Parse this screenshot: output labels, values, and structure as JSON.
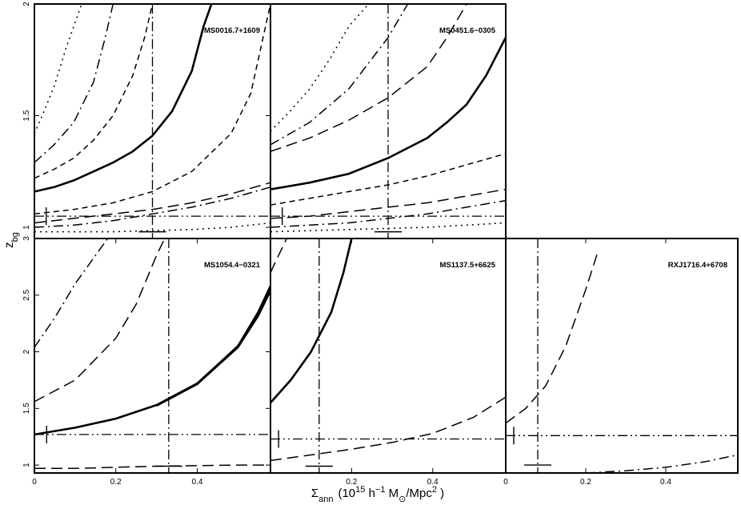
{
  "figure": {
    "ylabel": "z̄bg",
    "ylabel_main": "z",
    "ylabel_sub": "bg",
    "xlabel": "Σ̄ann (10^15 h^-1 M⊙/Mpc^2 )",
    "xlabel_parts": {
      "sigma": "Σ",
      "sigma_sub": "ann",
      "open": "(10",
      "exp15": "15",
      "h": " h",
      "exp_minus1": "−1",
      "M": " M",
      "M_sub": "⊙",
      "per": "/Mpc",
      "exp2": "2",
      "close": " )"
    }
  },
  "chart_data": [
    {
      "type": "line",
      "title": "MS0016.7+1609",
      "xlim": [
        0,
        0.6
      ],
      "ylim": [
        0.95,
        2
      ],
      "xticks": [],
      "yticks": [
        1,
        1.5,
        2
      ],
      "ytick_labels": [
        "1",
        "1.5",
        "2"
      ],
      "reference_lines": {
        "x": 0.3,
        "y": 1.05
      },
      "x_marker": {
        "x": 0.03,
        "y": 1.05
      },
      "y_marker": {
        "x": 0.3,
        "y": 0.98
      },
      "series": [
        {
          "style": "solid",
          "x": [
            0,
            0.05,
            0.1,
            0.15,
            0.2,
            0.25,
            0.3,
            0.35,
            0.4,
            0.43,
            0.45
          ],
          "y": [
            1.16,
            1.18,
            1.21,
            1.25,
            1.29,
            1.34,
            1.41,
            1.52,
            1.7,
            1.9,
            2
          ]
        },
        {
          "style": "short-dash",
          "x": [
            0,
            0.05,
            0.1,
            0.15,
            0.2,
            0.25,
            0.28,
            0.3
          ],
          "y": [
            1.22,
            1.26,
            1.31,
            1.39,
            1.5,
            1.68,
            1.85,
            2
          ]
        },
        {
          "style": "short-dash",
          "x": [
            0,
            0.1,
            0.2,
            0.3,
            0.4,
            0.5,
            0.55,
            0.6
          ],
          "y": [
            1.06,
            1.08,
            1.11,
            1.16,
            1.25,
            1.42,
            1.6,
            2
          ]
        },
        {
          "style": "dash-dot",
          "x": [
            0,
            0.05,
            0.1,
            0.15,
            0.18,
            0.2
          ],
          "y": [
            1.29,
            1.37,
            1.47,
            1.65,
            1.85,
            2
          ]
        },
        {
          "style": "dash-dot",
          "x": [
            0,
            0.1,
            0.2,
            0.3,
            0.4,
            0.5,
            0.6
          ],
          "y": [
            1.0,
            1.01,
            1.03,
            1.06,
            1.09,
            1.13,
            1.18
          ]
        },
        {
          "style": "long-dash",
          "x": [
            0,
            0.1,
            0.2,
            0.3,
            0.4,
            0.5,
            0.6
          ],
          "y": [
            1.02,
            1.04,
            1.06,
            1.08,
            1.11,
            1.15,
            1.2
          ]
        },
        {
          "style": "dotted",
          "x": [
            0,
            0.02,
            0.05,
            0.08,
            0.1,
            0.12
          ],
          "y": [
            1.42,
            1.5,
            1.63,
            1.8,
            1.9,
            2
          ]
        },
        {
          "style": "dotted",
          "x": [
            0,
            0.2,
            0.4,
            0.5,
            0.6
          ],
          "y": [
            0.98,
            0.98,
            0.99,
            1.0,
            1.02
          ]
        }
      ]
    },
    {
      "type": "line",
      "title": "MS0451.6−0305",
      "xlim": [
        0,
        0.6
      ],
      "ylim": [
        0.95,
        2
      ],
      "xticks": [],
      "yticks": [],
      "reference_lines": {
        "x": 0.3,
        "y": 1.05
      },
      "x_marker": {
        "x": 0.03,
        "y": 1.05
      },
      "y_marker": {
        "x": 0.3,
        "y": 0.98
      },
      "series": [
        {
          "style": "solid",
          "x": [
            0,
            0.1,
            0.2,
            0.3,
            0.4,
            0.45,
            0.5,
            0.55,
            0.6
          ],
          "y": [
            1.17,
            1.2,
            1.24,
            1.31,
            1.4,
            1.47,
            1.55,
            1.68,
            1.85
          ]
        },
        {
          "style": "short-dash",
          "x": [
            0,
            0.1,
            0.2,
            0.3,
            0.4,
            0.5,
            0.6
          ],
          "y": [
            1.1,
            1.13,
            1.16,
            1.19,
            1.23,
            1.28,
            1.33
          ]
        },
        {
          "style": "long-dash",
          "x": [
            0,
            0.1,
            0.2,
            0.3,
            0.4,
            0.45,
            0.5
          ],
          "y": [
            1.34,
            1.4,
            1.48,
            1.58,
            1.72,
            1.85,
            2
          ]
        },
        {
          "style": "long-dash",
          "x": [
            0,
            0.1,
            0.2,
            0.3,
            0.4,
            0.5,
            0.6
          ],
          "y": [
            1.04,
            1.05,
            1.07,
            1.09,
            1.11,
            1.14,
            1.17
          ]
        },
        {
          "style": "dash-dot",
          "x": [
            0,
            0.1,
            0.2,
            0.3,
            0.35
          ],
          "y": [
            1.37,
            1.47,
            1.62,
            1.85,
            2
          ]
        },
        {
          "style": "dash-dot",
          "x": [
            0,
            0.1,
            0.2,
            0.3,
            0.4,
            0.5,
            0.6
          ],
          "y": [
            1.0,
            1.01,
            1.02,
            1.04,
            1.06,
            1.09,
            1.12
          ]
        },
        {
          "style": "dotted",
          "x": [
            0,
            0.05,
            0.1,
            0.15,
            0.2,
            0.25
          ],
          "y": [
            1.43,
            1.52,
            1.62,
            1.75,
            1.9,
            2
          ]
        },
        {
          "style": "dotted",
          "x": [
            0,
            0.2,
            0.4,
            0.6
          ],
          "y": [
            0.98,
            0.99,
            1.0,
            1.02
          ]
        }
      ]
    },
    {
      "type": "line",
      "title": "MS1054.4−0321",
      "xlim": [
        0,
        0.58
      ],
      "ylim": [
        0.93,
        3
      ],
      "xticks": [
        0,
        0.2,
        0.4
      ],
      "xtick_labels": [
        "0",
        "0.2",
        "0.4"
      ],
      "yticks": [
        1,
        1.5,
        2,
        2.5,
        3
      ],
      "ytick_labels": [
        "1",
        "1.5",
        "2",
        "2.5",
        "3"
      ],
      "reference_lines": {
        "x": 0.33,
        "y": 1.27
      },
      "x_marker": {
        "x": 0.03,
        "y": 1.27
      },
      "y_marker": {
        "x": 0.33,
        "y": 0.99
      },
      "series": [
        {
          "style": "solid",
          "x": [
            0,
            0.1,
            0.2,
            0.3,
            0.4,
            0.5,
            0.55,
            0.58
          ],
          "y": [
            1.27,
            1.33,
            1.41,
            1.53,
            1.72,
            2.05,
            2.35,
            2.58
          ]
        },
        {
          "style": "solid",
          "x": [
            0.3,
            0.4,
            0.5,
            0.55,
            0.58
          ],
          "y": [
            1.525,
            1.715,
            2.04,
            2.32,
            2.54
          ]
        },
        {
          "style": "long-dash",
          "x": [
            0,
            0.1,
            0.2,
            0.25,
            0.3,
            0.32
          ],
          "y": [
            1.56,
            1.75,
            2.12,
            2.42,
            2.85,
            3
          ]
        },
        {
          "style": "dash-dot",
          "x": [
            0,
            0.05,
            0.1,
            0.15,
            0.18
          ],
          "y": [
            2.04,
            2.3,
            2.6,
            2.85,
            3
          ]
        },
        {
          "style": "long-dash",
          "x": [
            0,
            0.1,
            0.2,
            0.3,
            0.4,
            0.5,
            0.58
          ],
          "y": [
            0.97,
            0.97,
            0.98,
            0.99,
            0.995,
            1.0,
            1.0
          ]
        }
      ]
    },
    {
      "type": "line",
      "title": "MS1137.5+6625",
      "xlim": [
        0,
        0.58
      ],
      "ylim": [
        0.93,
        3
      ],
      "xticks": [
        0,
        0.2,
        0.4
      ],
      "xtick_labels": [
        "",
        "0.2",
        "0.4"
      ],
      "yticks": [],
      "reference_lines": {
        "x": 0.12,
        "y": 1.23
      },
      "x_marker": {
        "x": 0.02,
        "y": 1.23
      },
      "y_marker": {
        "x": 0.12,
        "y": 0.99
      },
      "series": [
        {
          "style": "solid",
          "x": [
            0,
            0.05,
            0.1,
            0.15,
            0.18,
            0.2
          ],
          "y": [
            1.55,
            1.75,
            2.0,
            2.35,
            2.7,
            3
          ]
        },
        {
          "style": "long-dash",
          "x": [
            0,
            0.02,
            0.04
          ],
          "y": [
            2.7,
            2.85,
            3
          ]
        },
        {
          "style": "long-dash",
          "x": [
            0,
            0.1,
            0.2,
            0.3,
            0.4,
            0.5,
            0.58
          ],
          "y": [
            1.04,
            1.09,
            1.14,
            1.2,
            1.28,
            1.42,
            1.6
          ]
        }
      ]
    },
    {
      "type": "line",
      "title": "RXJ1716.4+6708",
      "xlim": [
        0,
        0.58
      ],
      "ylim": [
        0.93,
        3
      ],
      "xticks": [
        0,
        0.2,
        0.4
      ],
      "xtick_labels": [
        "0",
        "0.2",
        "0.4"
      ],
      "yticks": [],
      "reference_lines": {
        "x": 0.08,
        "y": 1.26
      },
      "x_marker": {
        "x": 0.02,
        "y": 1.26
      },
      "y_marker": {
        "x": 0.08,
        "y": 1.0
      },
      "series": [
        {
          "style": "long-dash",
          "x": [
            0,
            0.05,
            0.1,
            0.15,
            0.2,
            0.23
          ],
          "y": [
            1.37,
            1.5,
            1.7,
            2.05,
            2.55,
            2.88
          ]
        },
        {
          "style": "dash-dot",
          "x": [
            0.2,
            0.3,
            0.4,
            0.5,
            0.58
          ],
          "y": [
            0.93,
            0.95,
            0.98,
            1.03,
            1.09
          ]
        }
      ]
    }
  ]
}
